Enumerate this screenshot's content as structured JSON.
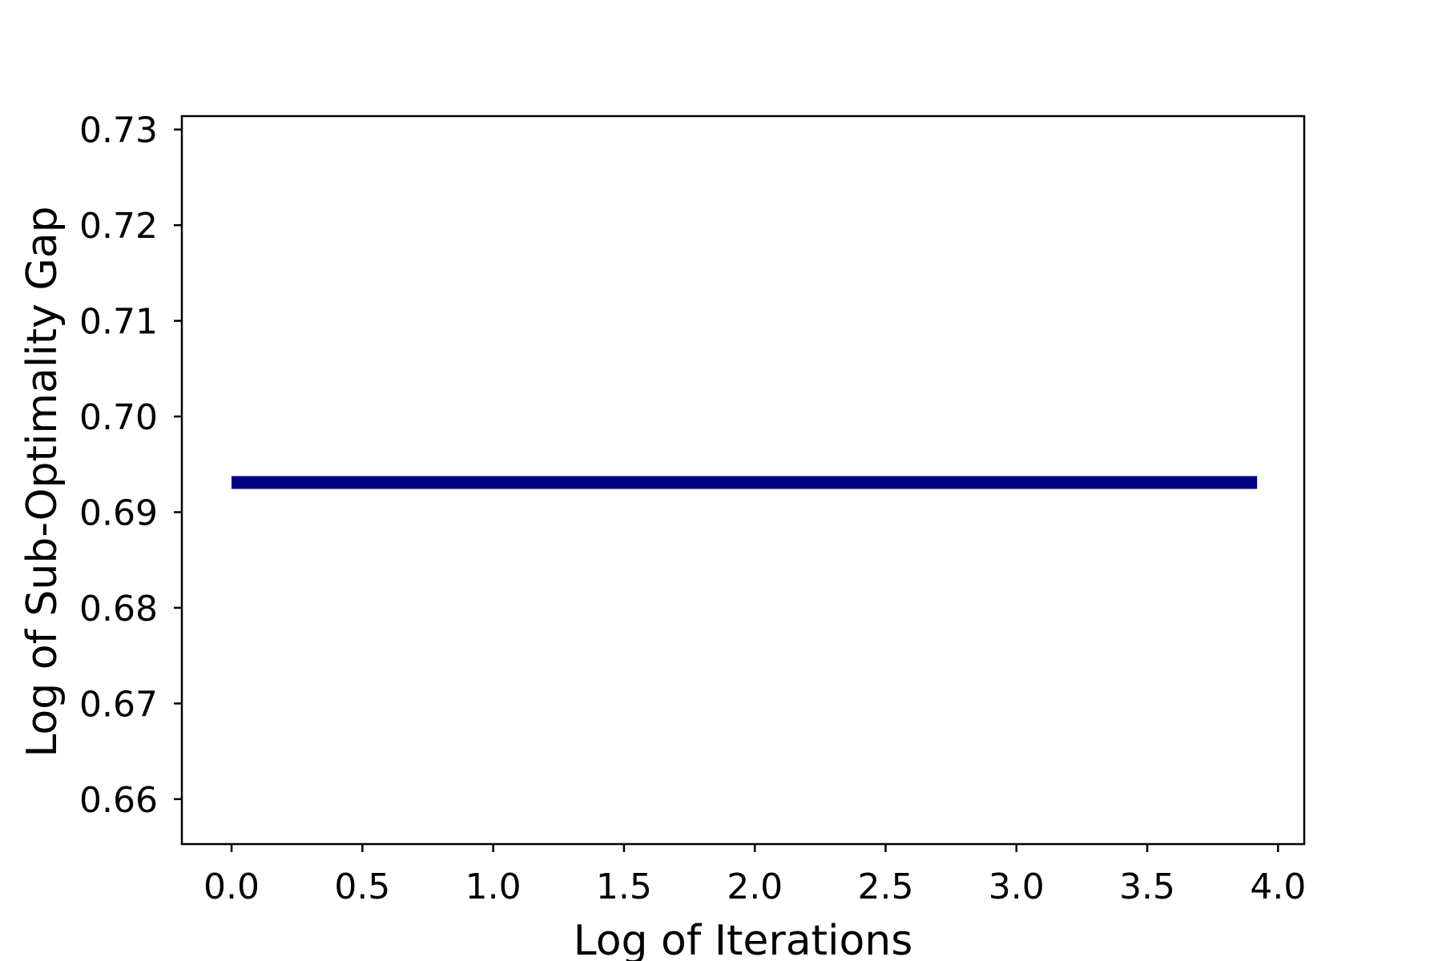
{
  "chart_data": {
    "type": "line",
    "title": "",
    "xlabel": "Log of Iterations",
    "ylabel": "Log of Sub-Optimality Gap",
    "xlim": [
      -0.19,
      4.1
    ],
    "ylim": [
      0.6553,
      0.7314
    ],
    "x_ticks": [
      0.0,
      0.5,
      1.0,
      1.5,
      2.0,
      2.5,
      3.0,
      3.5,
      4.0
    ],
    "x_tick_labels": [
      "0.0",
      "0.5",
      "1.0",
      "1.5",
      "2.0",
      "2.5",
      "3.0",
      "3.5",
      "4.0"
    ],
    "y_ticks": [
      0.66,
      0.67,
      0.68,
      0.69,
      0.7,
      0.71,
      0.72,
      0.73
    ],
    "y_tick_labels": [
      "0.66",
      "0.67",
      "0.68",
      "0.69",
      "0.70",
      "0.71",
      "0.72",
      "0.73"
    ],
    "grid": false,
    "legend": "none",
    "series": [
      {
        "color": "#000080",
        "x": [
          0.0,
          3.92
        ],
        "y": [
          0.6931,
          0.6931
        ]
      }
    ]
  }
}
